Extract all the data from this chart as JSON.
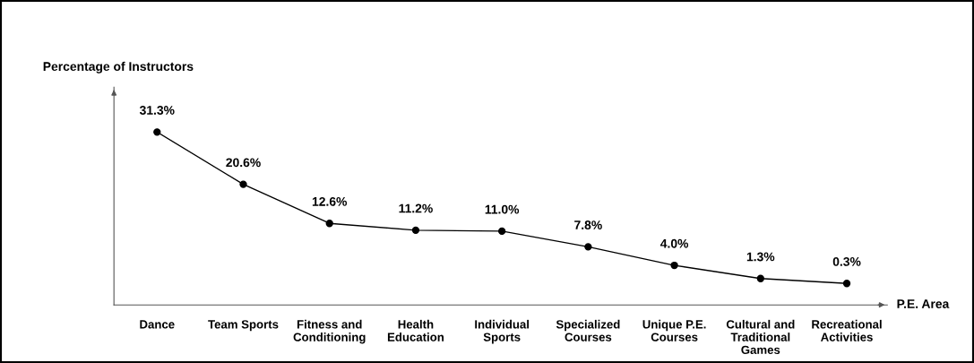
{
  "chart_data": {
    "type": "line",
    "xlabel": "P.E. Area",
    "ylabel": "Percentage of Instructors",
    "categories": [
      "Dance",
      "Team Sports",
      "Fitness and\nConditioning",
      "Health\nEducation",
      "Individual\nSports",
      "Specialized\nCourses",
      "Unique P.E.\nCourses",
      "Cultural and\nTraditional\nGames",
      "Recreational\nActivities"
    ],
    "series": [
      {
        "color": "#000000",
        "values": [
          31.3,
          20.6,
          12.6,
          11.2,
          11.0,
          7.8,
          4.0,
          1.3,
          0.3
        ],
        "value_labels": [
          "31.3%",
          "20.6%",
          "12.6%",
          "11.2%",
          "11.0%",
          "7.8%",
          "4.0%",
          "1.3%",
          "0.3%"
        ]
      }
    ],
    "ylim": [
      -4.1,
      40.5
    ],
    "tick_labels": "x",
    "marker": "circle",
    "line_style": "solid",
    "grid": false,
    "legend": false
  }
}
